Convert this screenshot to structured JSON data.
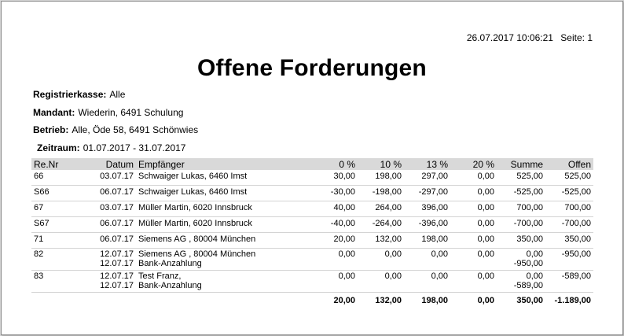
{
  "header": {
    "datetime": "26.07.2017 10:06:21",
    "page": "Seite: 1",
    "title": "Offene Forderungen"
  },
  "filters": {
    "kasse_label": "Registrierkasse:",
    "kasse_value": "Alle",
    "mandant_label": "Mandant:",
    "mandant_value": "Wiederin, 6491 Schulung",
    "betrieb_label": "Betrieb:",
    "betrieb_value": "Alle, Öde 58, 6491 Schönwies",
    "zeitraum_label": "Zeitraum:",
    "zeitraum_value": "01.07.2017 - 31.07.2017"
  },
  "table": {
    "columns": [
      "Re.Nr",
      "Datum",
      "Empfänger",
      "0 %",
      "10 %",
      "13 %",
      "20 %",
      "Summe",
      "Offen"
    ],
    "rows": [
      {
        "renr": "66",
        "datum": "03.07.17",
        "datum2": "",
        "empf": "Schwaiger Lukas, 6460 Imst",
        "empf2": "",
        "p0": "30,00",
        "p10": "198,00",
        "p13": "297,00",
        "p20": "0,00",
        "summe": "525,00",
        "summe2": "",
        "offen": "525,00"
      },
      {
        "renr": "S66",
        "datum": "06.07.17",
        "datum2": "",
        "empf": "Schwaiger Lukas, 6460 Imst",
        "empf2": "",
        "p0": "-30,00",
        "p10": "-198,00",
        "p13": "-297,00",
        "p20": "0,00",
        "summe": "-525,00",
        "summe2": "",
        "offen": "-525,00"
      },
      {
        "renr": "67",
        "datum": "03.07.17",
        "datum2": "",
        "empf": "Müller Martin, 6020 Innsbruck",
        "empf2": "",
        "p0": "40,00",
        "p10": "264,00",
        "p13": "396,00",
        "p20": "0,00",
        "summe": "700,00",
        "summe2": "",
        "offen": "700,00"
      },
      {
        "renr": "S67",
        "datum": "06.07.17",
        "datum2": "",
        "empf": "Müller Martin, 6020 Innsbruck",
        "empf2": "",
        "p0": "-40,00",
        "p10": "-264,00",
        "p13": "-396,00",
        "p20": "0,00",
        "summe": "-700,00",
        "summe2": "",
        "offen": "-700,00"
      },
      {
        "renr": "71",
        "datum": "06.07.17",
        "datum2": "",
        "empf": "Siemens AG , 80004 München",
        "empf2": "",
        "p0": "20,00",
        "p10": "132,00",
        "p13": "198,00",
        "p20": "0,00",
        "summe": "350,00",
        "summe2": "",
        "offen": "350,00"
      },
      {
        "renr": "82",
        "datum": "12.07.17",
        "datum2": "12.07.17",
        "empf": "Siemens AG , 80004 München",
        "empf2": "Bank-Anzahlung",
        "p0": "0,00",
        "p10": "0,00",
        "p13": "0,00",
        "p20": "0,00",
        "summe": "0,00",
        "summe2": "-950,00",
        "offen": "-950,00"
      },
      {
        "renr": "83",
        "datum": "12.07.17",
        "datum2": "12.07.17",
        "empf": "Test Franz,",
        "empf2": "Bank-Anzahlung",
        "p0": "0,00",
        "p10": "0,00",
        "p13": "0,00",
        "p20": "0,00",
        "summe": "0,00",
        "summe2": "-589,00",
        "offen": "-589,00"
      }
    ],
    "totals": {
      "p0": "20,00",
      "p10": "132,00",
      "p13": "198,00",
      "p20": "0,00",
      "summe": "350,00",
      "offen": "-1.189,00"
    }
  }
}
